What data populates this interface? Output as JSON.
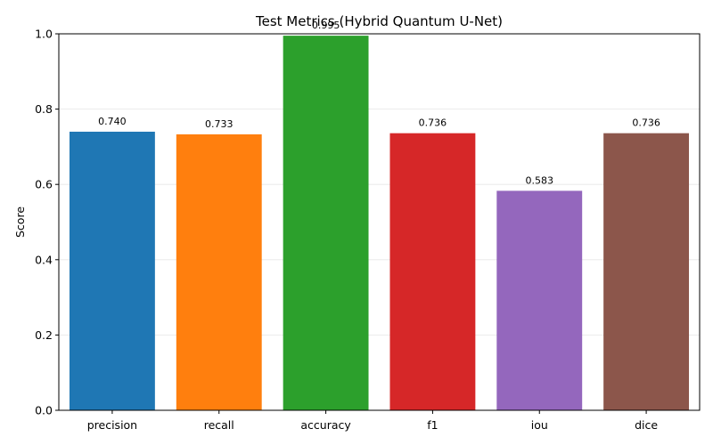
{
  "chart_data": {
    "type": "bar",
    "title": "Test Metrics (Hybrid Quantum U-Net)",
    "xlabel": "",
    "ylabel": "Score",
    "categories": [
      "precision",
      "recall",
      "accuracy",
      "f1",
      "iou",
      "dice"
    ],
    "values": [
      0.74,
      0.733,
      0.995,
      0.736,
      0.583,
      0.736
    ],
    "data_labels": [
      "0.740",
      "0.733",
      "0.995",
      "0.736",
      "0.583",
      "0.736"
    ],
    "colors": [
      "#1f77b4",
      "#ff7f0e",
      "#2ca02c",
      "#d62728",
      "#9467bd",
      "#8c564b"
    ],
    "ylim": [
      0,
      1.0
    ],
    "yticks": [
      0.0,
      0.2,
      0.4,
      0.6,
      0.8,
      1.0
    ],
    "ytick_labels": [
      "0.0",
      "0.2",
      "0.4",
      "0.6",
      "0.8",
      "1.0"
    ],
    "grid": "y-axis, light",
    "legend": "none"
  }
}
